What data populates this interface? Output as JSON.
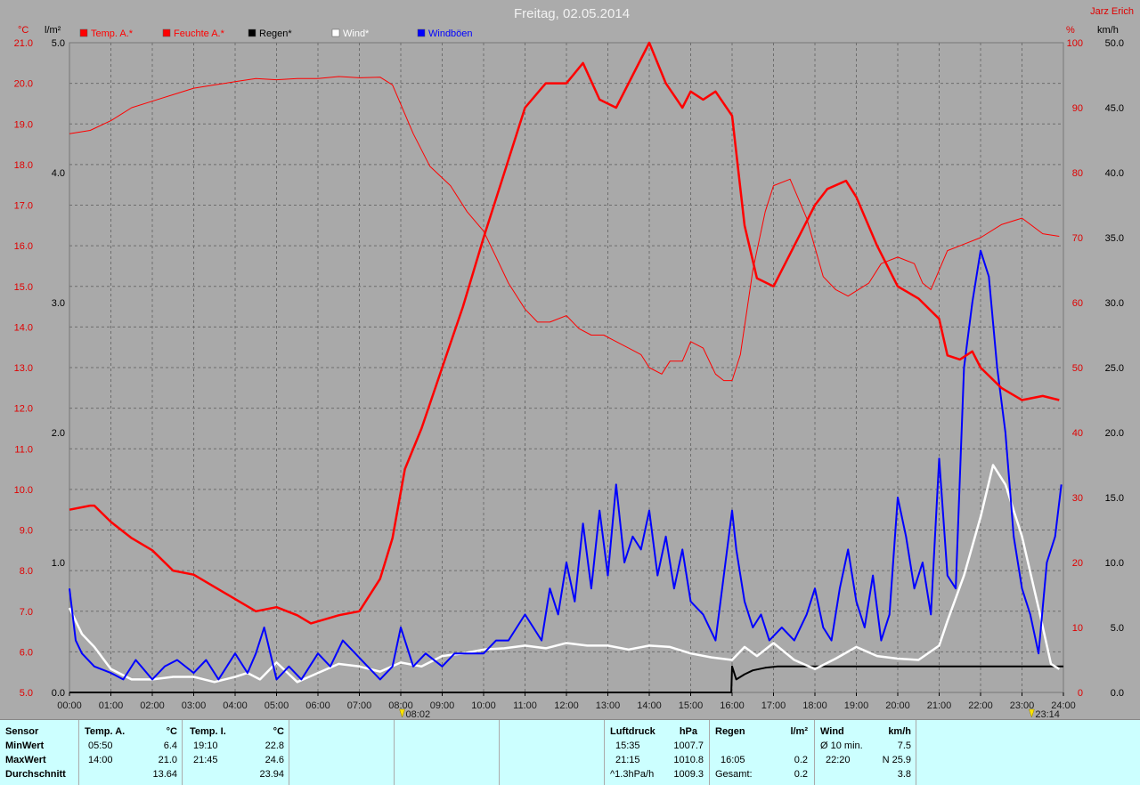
{
  "title": "Freitag, 02.05.2014",
  "station": "Jarz Erich",
  "units": {
    "temp": "°C",
    "rain": "l/m²",
    "hum": "%",
    "wind": "km/h"
  },
  "legend": [
    {
      "label": "Temp. A.*",
      "color": "#ff0000"
    },
    {
      "label": "Feuchte A.*",
      "color": "#ff0000"
    },
    {
      "label": "Regen*",
      "color": "#000000"
    },
    {
      "label": "Wind*",
      "color": "#ffffff"
    },
    {
      "label": "Windböen",
      "color": "#0000ff"
    }
  ],
  "markers": {
    "sunrise": "08:02",
    "sunset": "23:14"
  },
  "chart_data": {
    "type": "line",
    "title": "Freitag, 02.05.2014",
    "x_ticks": [
      "00:00",
      "01:00",
      "02:00",
      "03:00",
      "04:00",
      "05:00",
      "06:00",
      "07:00",
      "08:00",
      "09:00",
      "10:00",
      "11:00",
      "12:00",
      "13:00",
      "14:00",
      "15:00",
      "16:00",
      "17:00",
      "18:00",
      "19:00",
      "20:00",
      "21:00",
      "22:00",
      "23:00",
      "24:00"
    ],
    "axes": {
      "temp": {
        "min": 5.0,
        "max": 21.0,
        "ticks": [
          "21.0",
          "20.0",
          "19.0",
          "18.0",
          "17.0",
          "16.0",
          "15.0",
          "14.0",
          "13.0",
          "12.0",
          "11.0",
          "10.0",
          "9.0",
          "8.0",
          "7.0",
          "6.0",
          "5.0"
        ]
      },
      "rain": {
        "min": 0.0,
        "max": 5.0,
        "ticks": [
          "5.0",
          "4.0",
          "3.0",
          "2.0",
          "1.0",
          "0.0"
        ]
      },
      "hum": {
        "min": 0,
        "max": 100,
        "ticks": [
          "100",
          "90",
          "80",
          "70",
          "60",
          "50",
          "40",
          "30",
          "20",
          "10",
          "0"
        ]
      },
      "wind": {
        "min": 0.0,
        "max": 50.0,
        "ticks": [
          "50.0",
          "45.0",
          "40.0",
          "35.0",
          "30.0",
          "25.0",
          "20.0",
          "15.0",
          "10.0",
          "5.0",
          "0.0"
        ]
      }
    },
    "grid": true,
    "series": [
      {
        "name": "Temp. A.*",
        "axis": "temp",
        "color": "#ff0000",
        "width": 2.5,
        "x": [
          0,
          0.5,
          0.6,
          1,
          1.5,
          2,
          2.5,
          3,
          3.5,
          4,
          4.5,
          5,
          5.5,
          5.83,
          6.5,
          7,
          7.5,
          7.8,
          8.1,
          8.5,
          9,
          9.5,
          10,
          10.5,
          11,
          11.5,
          12,
          12.4,
          12.8,
          13.2,
          13.6,
          14,
          14.4,
          14.8,
          15,
          15.3,
          15.6,
          16,
          16.3,
          16.6,
          17,
          17.5,
          18,
          18.3,
          18.75,
          19,
          19.5,
          20,
          20.5,
          21,
          21.2,
          21.5,
          21.8,
          22,
          22.5,
          23,
          23.5,
          23.9
        ],
        "values": [
          9.5,
          9.6,
          9.6,
          9.2,
          8.8,
          8.5,
          8.0,
          7.9,
          7.6,
          7.3,
          7.0,
          7.1,
          6.9,
          6.7,
          6.9,
          7.0,
          7.8,
          8.8,
          10.5,
          11.5,
          13.0,
          14.5,
          16.2,
          17.8,
          19.4,
          20.0,
          20.0,
          20.5,
          19.6,
          19.4,
          20.2,
          21.0,
          20.0,
          19.4,
          19.8,
          19.6,
          19.8,
          19.2,
          16.5,
          15.2,
          15.0,
          16.0,
          17.0,
          17.4,
          17.6,
          17.2,
          16.0,
          15.0,
          14.7,
          14.2,
          13.3,
          13.2,
          13.4,
          13.0,
          12.5,
          12.2,
          12.3,
          12.2
        ]
      },
      {
        "name": "Feuchte A.*",
        "axis": "hum",
        "color": "#ff0000",
        "width": 1,
        "x": [
          0,
          0.5,
          1,
          1.5,
          2,
          2.5,
          3,
          3.5,
          4,
          4.5,
          5,
          5.5,
          6,
          6.5,
          7,
          7.5,
          7.8,
          8.3,
          8.7,
          9.2,
          9.6,
          10,
          10.3,
          10.6,
          11,
          11.3,
          11.6,
          12,
          12.3,
          12.6,
          12.9,
          13.2,
          13.5,
          13.8,
          14,
          14.3,
          14.5,
          14.8,
          15,
          15.3,
          15.6,
          15.8,
          16,
          16.2,
          16.5,
          16.8,
          17,
          17.4,
          17.8,
          18.2,
          18.5,
          18.8,
          19.3,
          19.6,
          20,
          20.4,
          20.6,
          20.8,
          21.2,
          21.6,
          22,
          22.5,
          23,
          23.5,
          23.9
        ],
        "values": [
          86,
          86.5,
          88,
          90,
          91,
          92,
          93,
          93.5,
          94,
          94.5,
          94.3,
          94.5,
          94.5,
          94.8,
          94.6,
          94.7,
          93.5,
          86,
          81,
          78,
          74,
          71,
          67,
          63,
          59,
          57,
          57,
          58,
          56,
          55,
          55,
          54,
          53,
          52,
          50,
          49,
          51,
          51,
          54,
          53,
          49,
          48,
          48,
          52,
          65,
          74,
          78,
          79,
          73,
          64,
          62,
          61,
          63,
          66,
          67,
          66,
          63,
          62,
          68,
          69,
          70,
          72,
          73,
          70.6,
          70.2
        ]
      },
      {
        "name": "Regen*",
        "axis": "rain",
        "color": "#000000",
        "width": 2,
        "x": [
          0,
          15.98,
          16.0,
          16.1,
          16.3,
          16.5,
          16.8,
          17.1,
          17.5,
          24
        ],
        "values": [
          0,
          0,
          0.2,
          0.1,
          0.14,
          0.17,
          0.19,
          0.2,
          0.2,
          0.2
        ]
      },
      {
        "name": "Wind*",
        "axis": "wind",
        "color": "#ffffff",
        "width": 2.5,
        "x": [
          0,
          0.3,
          0.6,
          1,
          1.5,
          2,
          2.5,
          3,
          3.5,
          4,
          4.3,
          4.6,
          5,
          5.5,
          6,
          6.5,
          7,
          7.5,
          8,
          8.5,
          9,
          9.5,
          10,
          10.5,
          11,
          11.5,
          12,
          12.5,
          13,
          13.5,
          14,
          14.5,
          15,
          15.5,
          16,
          16.3,
          16.6,
          17,
          17.5,
          18,
          18.5,
          19,
          19.5,
          20,
          20.5,
          21,
          21.2,
          21.6,
          22,
          22.3,
          22.6,
          23,
          23.4,
          23.7,
          23.9
        ],
        "values": [
          6.5,
          4.5,
          3.5,
          1.8,
          1,
          1,
          1.2,
          1.2,
          0.8,
          1.2,
          1.5,
          1,
          2.3,
          0.8,
          1.5,
          2.2,
          2.0,
          1.6,
          2.3,
          2.0,
          2.8,
          3.0,
          3.3,
          3.4,
          3.6,
          3.4,
          3.8,
          3.6,
          3.6,
          3.3,
          3.6,
          3.5,
          3.0,
          2.7,
          2.5,
          3.5,
          2.8,
          3.8,
          2.5,
          1.8,
          2.6,
          3.5,
          2.8,
          2.6,
          2.5,
          3.6,
          5.5,
          9.0,
          13.5,
          17.5,
          16.0,
          12.0,
          6.5,
          2.2,
          1.8
        ]
      },
      {
        "name": "Windböen",
        "axis": "wind",
        "color": "#0000ff",
        "width": 2,
        "x": [
          0,
          0.15,
          0.3,
          0.6,
          1,
          1.3,
          1.6,
          2,
          2.3,
          2.6,
          3,
          3.3,
          3.6,
          4,
          4.3,
          4.5,
          4.7,
          5,
          5.3,
          5.6,
          6,
          6.3,
          6.6,
          6.9,
          7.2,
          7.5,
          7.8,
          8,
          8.3,
          8.6,
          9,
          9.3,
          9.6,
          10,
          10.3,
          10.6,
          11,
          11.2,
          11.4,
          11.6,
          11.8,
          12,
          12.2,
          12.4,
          12.6,
          12.8,
          13,
          13.2,
          13.4,
          13.6,
          13.8,
          14,
          14.2,
          14.4,
          14.6,
          14.8,
          15,
          15.3,
          15.6,
          15.8,
          16,
          16.1,
          16.3,
          16.5,
          16.7,
          16.9,
          17.2,
          17.5,
          17.8,
          18,
          18.2,
          18.4,
          18.6,
          18.8,
          19,
          19.2,
          19.4,
          19.6,
          19.8,
          20,
          20.2,
          20.4,
          20.6,
          20.8,
          21,
          21.2,
          21.4,
          21.6,
          21.8,
          22,
          22.2,
          22.4,
          22.6,
          22.8,
          23,
          23.2,
          23.4,
          23.6,
          23.8,
          23.95
        ],
        "values": [
          8,
          4,
          3,
          2,
          1.5,
          1,
          2.5,
          1,
          2,
          2.5,
          1.5,
          2.5,
          1,
          3,
          1.5,
          3,
          5,
          1,
          2,
          1,
          3,
          2,
          4,
          3,
          2,
          1,
          2,
          5,
          2,
          3,
          2,
          3,
          3,
          3,
          4,
          4,
          6,
          5,
          4,
          8,
          6,
          10,
          7,
          13,
          8,
          14,
          9,
          16,
          10,
          12,
          11,
          14,
          9,
          12,
          8,
          11,
          7,
          6,
          4,
          9,
          14,
          11,
          7,
          5,
          6,
          4,
          5,
          4,
          6,
          8,
          5,
          4,
          8,
          11,
          7,
          5,
          9,
          4,
          6,
          15,
          12,
          8,
          10,
          6,
          18,
          9,
          8,
          25,
          30,
          34,
          32,
          25,
          20,
          12,
          8,
          6,
          3,
          10,
          12,
          16
        ]
      }
    ]
  },
  "stats": {
    "sensor": {
      "header": "Sensor",
      "rows": [
        "MinWert",
        "MaxWert",
        "Durchschnitt"
      ]
    },
    "temp_a": {
      "header": "Temp. A.",
      "unit": "°C",
      "times": [
        "05:50",
        "14:00",
        ""
      ],
      "values": [
        "6.4",
        "21.0",
        "13.64"
      ]
    },
    "temp_i": {
      "header": "Temp. I.",
      "unit": "°C",
      "times": [
        "19:10",
        "21:45",
        ""
      ],
      "values": [
        "22.8",
        "24.6",
        "23.94"
      ]
    },
    "pressure": {
      "header": "Luftdruck",
      "unit": "hPa",
      "times": [
        "15:35",
        "21:15",
        "^1.3hPa/h"
      ],
      "values": [
        "1007.7",
        "1010.8",
        "1009.3"
      ]
    },
    "rain": {
      "header": "Regen",
      "unit": "l/m²",
      "times": [
        "",
        "16:05",
        "Gesamt:"
      ],
      "values": [
        "",
        "0.2",
        "0.2"
      ]
    },
    "wind": {
      "header": "Wind",
      "unit": "km/h",
      "labels": [
        "Ø 10 min.",
        "22:20",
        ""
      ],
      "values": [
        "7.5",
        "N 25.9",
        "3.8"
      ]
    }
  }
}
